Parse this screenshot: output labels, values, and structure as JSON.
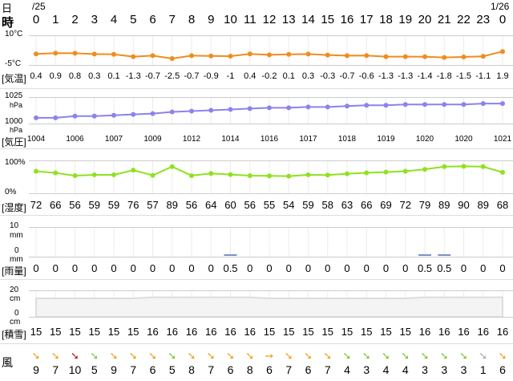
{
  "header": {
    "label_day": "日",
    "label_hour": "時",
    "date_start": "/25",
    "date_end": "1/26",
    "hours": [
      "0",
      "1",
      "2",
      "3",
      "4",
      "5",
      "6",
      "7",
      "8",
      "9",
      "10",
      "11",
      "12",
      "13",
      "14",
      "15",
      "16",
      "17",
      "18",
      "19",
      "20",
      "21",
      "22",
      "23",
      "0"
    ]
  },
  "temperature": {
    "label": "[気温]",
    "axis_top": "10°C",
    "axis_bottom": "-5°C",
    "color": "#f08c1e",
    "values": [
      0.4,
      0.9,
      0.8,
      0.3,
      0.1,
      -1.3,
      -0.7,
      -2.5,
      -0.7,
      -0.9,
      -1,
      0.4,
      -0.2,
      0.1,
      0.3,
      -0.3,
      -0.7,
      -0.6,
      -1.3,
      -1.3,
      -1.4,
      -1.8,
      -1.5,
      -1.1,
      1.9
    ],
    "labels": [
      "0.4",
      "0.9",
      "0.8",
      "0.3",
      "0.1",
      "-1.3",
      "-0.7",
      "-2.5",
      "-0.7",
      "-0.9",
      "-1",
      "0.4",
      "-0.2",
      "0.1",
      "0.3",
      "-0.3",
      "-0.7",
      "-0.6",
      "-1.3",
      "-1.3",
      "-1.4",
      "-1.8",
      "-1.5",
      "-1.1",
      "1.9"
    ]
  },
  "pressure": {
    "label": "[気圧]",
    "axis_top": "1025",
    "axis_top_unit": "hPa",
    "axis_bottom": "1000",
    "axis_bottom_unit": "hPa",
    "color": "#8c82ee",
    "values": [
      1004,
      1004,
      1006,
      1006,
      1007,
      1008,
      1009,
      1011,
      1012,
      1013,
      1014,
      1015,
      1016,
      1016,
      1017,
      1017,
      1018,
      1019,
      1019,
      1020,
      1020,
      1020,
      1020,
      1021,
      1021
    ],
    "labels": [
      "1004",
      "",
      "1006",
      "",
      "1007",
      "",
      "1009",
      "",
      "1012",
      "",
      "1014",
      "",
      "1016",
      "",
      "1017",
      "",
      "1018",
      "",
      "1019",
      "",
      "1020",
      "",
      "1020",
      "",
      "1021"
    ]
  },
  "humidity": {
    "label": "[湿度]",
    "axis_top": "100%",
    "axis_bottom": "0%",
    "color": "#8ee21e",
    "values": [
      72,
      66,
      56,
      59,
      59,
      76,
      57,
      89,
      56,
      64,
      60,
      56,
      55,
      54,
      59,
      58,
      63,
      66,
      69,
      72,
      79,
      89,
      90,
      89,
      68
    ],
    "labels": [
      "72",
      "66",
      "56",
      "59",
      "59",
      "76",
      "57",
      "89",
      "56",
      "64",
      "60",
      "56",
      "55",
      "54",
      "59",
      "58",
      "63",
      "66",
      "69",
      "72",
      "79",
      "89",
      "90",
      "89",
      "68"
    ]
  },
  "precip": {
    "label": "[雨量]",
    "axis_top": "10",
    "axis_top_unit": "mm",
    "axis_bottom": "0",
    "axis_bottom_unit": "mm",
    "color": "#7b8fc8",
    "values": [
      0,
      0,
      0,
      0,
      0,
      0,
      0,
      0,
      0,
      0,
      0.5,
      0,
      0,
      0,
      0,
      0,
      0,
      0,
      0,
      0,
      0.5,
      0.5,
      0,
      0,
      0
    ],
    "labels": [
      "0",
      "0",
      "0",
      "0",
      "0",
      "0",
      "0",
      "0",
      "0",
      "0",
      "0.5",
      "0",
      "0",
      "0",
      "0",
      "0",
      "0",
      "0",
      "0",
      "0",
      "0.5",
      "0.5",
      "0",
      "0",
      "0"
    ]
  },
  "snow": {
    "label": "[積雪]",
    "axis_top": "20",
    "axis_top_unit": "cm",
    "axis_bottom": "0",
    "axis_bottom_unit": "cm",
    "color": "#dddddd",
    "values": [
      15,
      15,
      15,
      15,
      15,
      15,
      16,
      16,
      16,
      16,
      16,
      16,
      15,
      15,
      15,
      15,
      15,
      15,
      15,
      15,
      16,
      16,
      16,
      16,
      16
    ],
    "labels": [
      "15",
      "15",
      "15",
      "15",
      "15",
      "15",
      "16",
      "16",
      "16",
      "16",
      "16",
      "16",
      "15",
      "15",
      "15",
      "15",
      "15",
      "15",
      "15",
      "15",
      "16",
      "16",
      "16",
      "16",
      "16"
    ]
  },
  "wind": {
    "label": "風",
    "speeds": [
      "9",
      "7",
      "10",
      "5",
      "9",
      "7",
      "6",
      "5",
      "8",
      "7",
      "6",
      "8",
      "6",
      "7",
      "6",
      "7",
      "4",
      "3",
      "4",
      "4",
      "3",
      "3",
      "3",
      "1",
      "6"
    ],
    "colors": [
      "#f0a020",
      "#f0a020",
      "#b82010",
      "#7cc832",
      "#f0a020",
      "#f0a020",
      "#f0a020",
      "#7cc832",
      "#f0a020",
      "#f0a020",
      "#f0a020",
      "#f0a020",
      "#f0a020",
      "#f0a020",
      "#f0a020",
      "#f0a020",
      "#7cc832",
      "#7cc832",
      "#7cc832",
      "#7cc832",
      "#7cc832",
      "#7cc832",
      "#7cc832",
      "#aaaaaa",
      "#f0a020"
    ],
    "arrows": [
      "➘",
      "➘",
      "➘",
      "➘",
      "➘",
      "➘",
      "➘",
      "➘",
      "➘",
      "➘",
      "➘",
      "➘",
      "➙",
      "➘",
      "➘",
      "➘",
      "➘",
      "➘",
      "➘",
      "➘",
      "➘",
      "➘",
      "➘",
      "➘",
      "➘"
    ]
  }
}
